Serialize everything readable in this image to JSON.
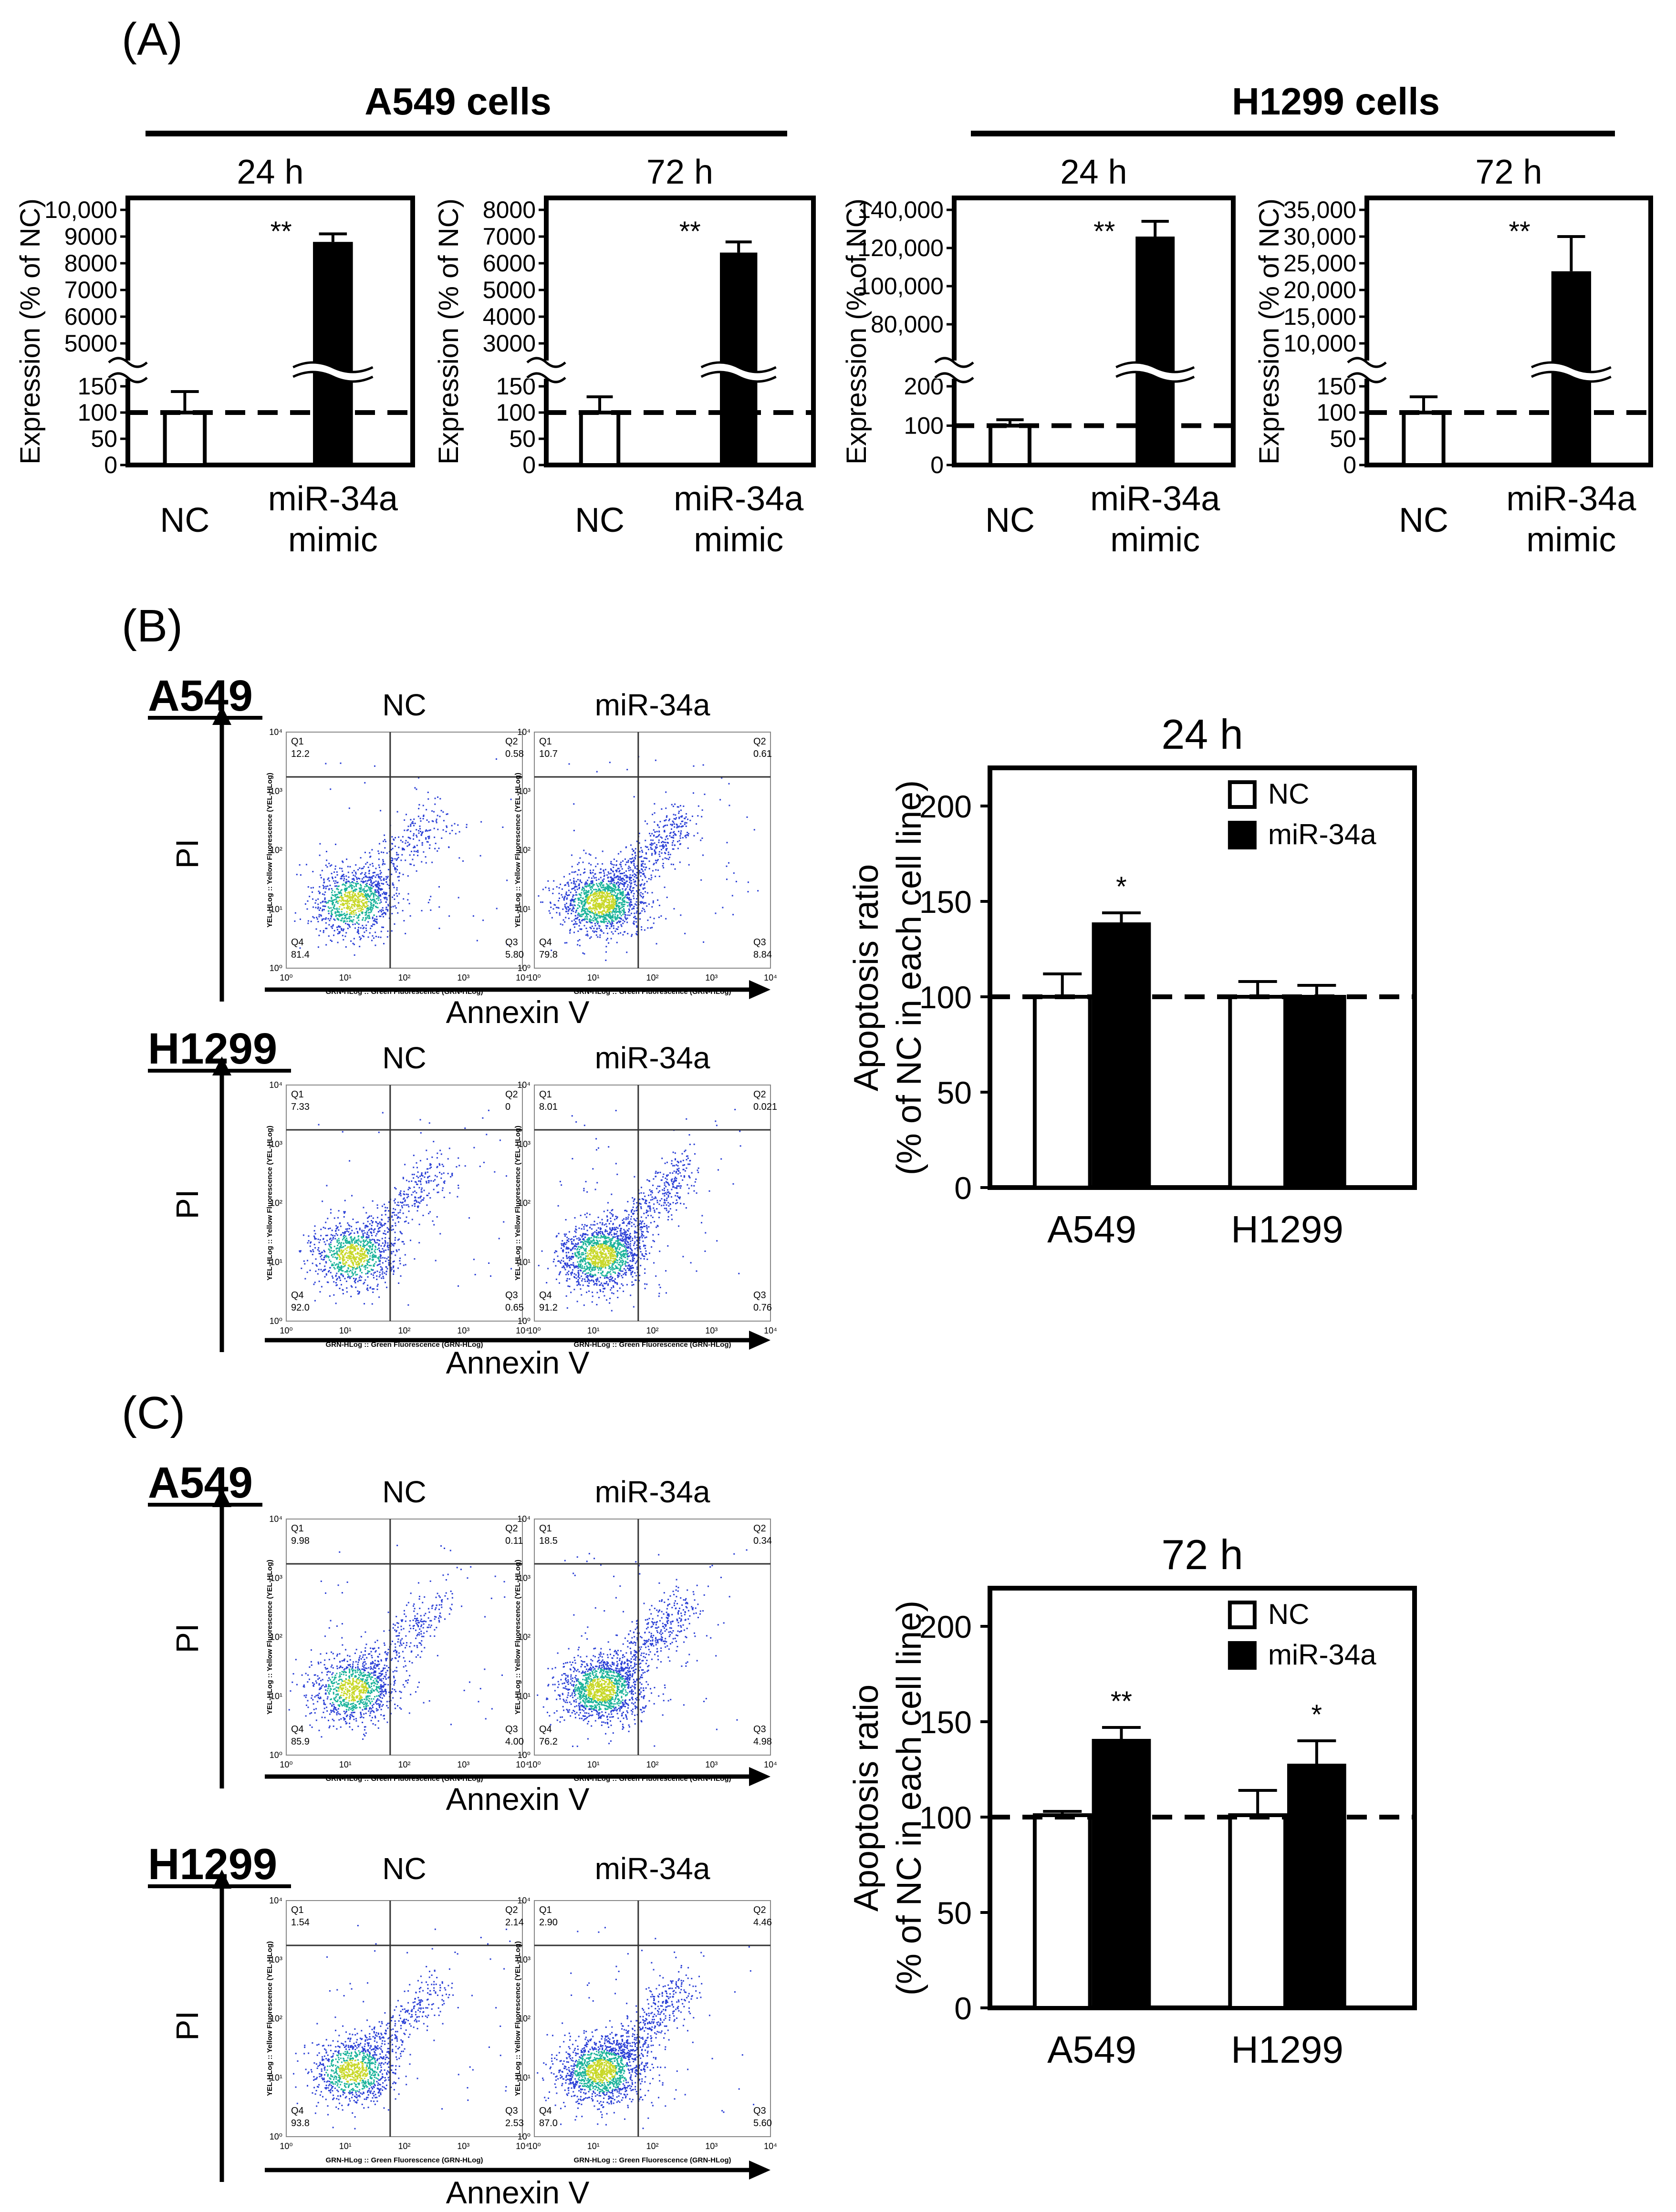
{
  "figure": {
    "panel_labels": [
      "(A)",
      "(B)",
      "(C)"
    ],
    "colors": {
      "nc": "#ffffff",
      "mir": "#000000",
      "dot_cold": "#2a3fd6",
      "dot_mid": "#1bb39a",
      "dot_hot": "#c8d829"
    }
  },
  "panelA": {
    "groups": [
      {
        "title": "A549 cells"
      },
      {
        "title": "H1299 cells"
      }
    ],
    "ylabel": "Expression (% of NC)",
    "significance": "**",
    "chart_data": [
      {
        "type": "bar",
        "title": "24 h",
        "group": "A549 cells",
        "categories": [
          "NC",
          "miR-34a mimic"
        ],
        "category_lines": [
          [
            "NC"
          ],
          [
            "miR-34a",
            "mimic"
          ]
        ],
        "values": [
          100,
          8800
        ],
        "errors": [
          40,
          300
        ],
        "baseline": 100,
        "upper_ticks": [
          "10,000",
          "9000",
          "8000",
          "7000",
          "6000",
          "5000"
        ],
        "lower_ticks": [
          "150",
          "100",
          "50",
          "0"
        ],
        "upper_range": [
          5000,
          10000
        ],
        "lower_range": [
          0,
          150
        ]
      },
      {
        "type": "bar",
        "title": "72 h",
        "group": "A549 cells",
        "categories": [
          "NC",
          "miR-34a mimic"
        ],
        "category_lines": [
          [
            "NC"
          ],
          [
            "miR-34a",
            "mimic"
          ]
        ],
        "values": [
          100,
          6400
        ],
        "errors": [
          30,
          400
        ],
        "baseline": 100,
        "upper_ticks": [
          "8000",
          "7000",
          "6000",
          "5000",
          "4000",
          "3000"
        ],
        "lower_ticks": [
          "150",
          "100",
          "50",
          "0"
        ],
        "upper_range": [
          3000,
          8000
        ],
        "lower_range": [
          0,
          150
        ]
      },
      {
        "type": "bar",
        "title": "24 h",
        "group": "H1299 cells",
        "categories": [
          "NC",
          "miR-34a mimic"
        ],
        "category_lines": [
          [
            "NC"
          ],
          [
            "miR-34a",
            "mimic"
          ]
        ],
        "values": [
          100,
          126000
        ],
        "errors": [
          15,
          8000
        ],
        "baseline": 100,
        "upper_ticks": [
          "140,000",
          "120,000",
          "100,000",
          "80,000"
        ],
        "lower_ticks": [
          "200",
          "100",
          "0"
        ],
        "upper_range": [
          70000,
          140000
        ],
        "lower_range": [
          0,
          200
        ]
      },
      {
        "type": "bar",
        "title": "72 h",
        "group": "H1299 cells",
        "categories": [
          "NC",
          "miR-34a mimic"
        ],
        "category_lines": [
          [
            "NC"
          ],
          [
            "miR-34a",
            "mimic"
          ]
        ],
        "values": [
          100,
          23500
        ],
        "errors": [
          30,
          6500
        ],
        "baseline": 100,
        "upper_ticks": [
          "35,000",
          "30,000",
          "25,000",
          "20,000",
          "15,000",
          "10,000"
        ],
        "lower_ticks": [
          "150",
          "100",
          "50",
          "0"
        ],
        "upper_range": [
          10000,
          35000
        ],
        "lower_range": [
          0,
          150
        ]
      }
    ]
  },
  "panelB": {
    "flow": [
      {
        "cell_line": "A549",
        "condition": "NC",
        "q1": "12.2",
        "q2": "0.58",
        "q3": "5.80",
        "q4": "81.4"
      },
      {
        "cell_line": "A549",
        "condition": "miR-34a",
        "q1": "10.7",
        "q2": "0.61",
        "q3": "8.84",
        "q4": "79.8"
      },
      {
        "cell_line": "H1299",
        "condition": "NC",
        "q1": "7.33",
        "q2": "0",
        "q3": "0.65",
        "q4": "92.0"
      },
      {
        "cell_line": "H1299",
        "condition": "miR-34a",
        "q1": "8.01",
        "q2": "0.021",
        "q3": "0.76",
        "q4": "91.2"
      }
    ],
    "chart_data": {
      "type": "bar",
      "title": "24 h",
      "categories": [
        "A549",
        "H1299"
      ],
      "series": [
        {
          "name": "NC",
          "values": [
            100,
            100
          ],
          "errors": [
            12,
            8
          ]
        },
        {
          "name": "miR-34a",
          "values": [
            138,
            100
          ],
          "errors": [
            6,
            6
          ]
        }
      ],
      "significance": [
        "*",
        ""
      ],
      "baseline": 100,
      "ylabel": [
        "Apoptosis ratio",
        "(% of NC in each cell line)"
      ],
      "ylim": [
        0,
        220
      ],
      "yticks": [
        "0",
        "50",
        "100",
        "150",
        "200"
      ]
    }
  },
  "panelC": {
    "flow": [
      {
        "cell_line": "A549",
        "condition": "NC",
        "q1": "9.98",
        "q2": "0.11",
        "q3": "4.00",
        "q4": "85.9"
      },
      {
        "cell_line": "A549",
        "condition": "miR-34a",
        "q1": "18.5",
        "q2": "0.34",
        "q3": "4.98",
        "q4": "76.2"
      },
      {
        "cell_line": "H1299",
        "condition": "NC",
        "q1": "1.54",
        "q2": "2.14",
        "q3": "2.53",
        "q4": "93.8"
      },
      {
        "cell_line": "H1299",
        "condition": "miR-34a",
        "q1": "2.90",
        "q2": "4.46",
        "q3": "5.60",
        "q4": "87.0"
      }
    ],
    "chart_data": {
      "type": "bar",
      "title": "72 h",
      "categories": [
        "A549",
        "H1299"
      ],
      "series": [
        {
          "name": "NC",
          "values": [
            101,
            101
          ],
          "errors": [
            2,
            13
          ]
        },
        {
          "name": "miR-34a",
          "values": [
            140,
            127
          ],
          "errors": [
            7,
            13
          ]
        }
      ],
      "significance": [
        "**",
        "*"
      ],
      "baseline": 100,
      "ylabel": [
        "Apoptosis ratio",
        "(% of NC in each cell line)"
      ],
      "ylim": [
        0,
        220
      ],
      "yticks": [
        "0",
        "50",
        "100",
        "150",
        "200"
      ]
    }
  },
  "flow_axis": {
    "x_arrow_label": "Annexin V",
    "y_arrow_label": "PI",
    "x_axis_text": "GRN-HLog :: Green Fluorescence (GRN-HLog)",
    "y_axis_text": "YEL-HLog :: Yellow Fluorescence (YEL-HLog)",
    "decade_labels": [
      "10⁰",
      "10¹",
      "10²",
      "10³",
      "10⁴"
    ],
    "quadrant_names": [
      "Q1",
      "Q2",
      "Q3",
      "Q4"
    ]
  }
}
